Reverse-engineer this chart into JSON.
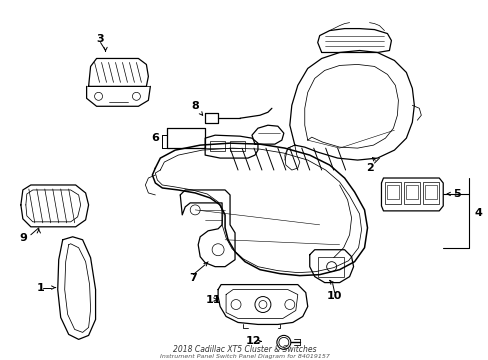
{
  "title": "2018 Cadillac XT5 Cluster & Switches",
  "subtitle": "Instrument Panel Switch Panel Diagram for 84019157",
  "background_color": "#ffffff",
  "line_color": "#000000",
  "fig_width": 4.89,
  "fig_height": 3.6,
  "dpi": 100
}
